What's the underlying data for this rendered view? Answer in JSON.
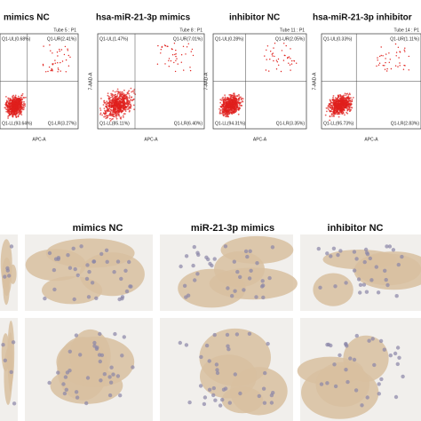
{
  "flow_panels": [
    {
      "title": "mimics NC",
      "tube": "Tube 5 : P1",
      "ul": "Q1-UL(0.68%)",
      "ur": "Q1-UR(2.41%)",
      "ll": "Q1-LL(93.64%)",
      "lr": "Q1-LR(3.27%)"
    },
    {
      "title": "hsa-miR-21-3p  mimics",
      "tube": "Tube 8 : P1",
      "ul": "Q1-UL(1.47%)",
      "ur": "Q1-UR(7.01%)",
      "ll": "Q1-LL(85.11%)",
      "lr": "Q1-LR(6.40%)"
    },
    {
      "title": "inhibitor NC",
      "tube": "Tube 11 : P1",
      "ul": "Q1-UL(0.28%)",
      "ur": "Q1-UR(2.05%)",
      "ll": "Q1-LL(94.31%)",
      "lr": "Q1-LR(3.35%)"
    },
    {
      "title": "hsa-miR-21-3p  inhibitor",
      "tube": "Tube 14 : P1",
      "ul": "Q1-UL(0.33%)",
      "ur": "Q1-UR(1.11%)",
      "ll": "Q1-LL(95.73%)",
      "lr": "Q1-LR(2.83%)"
    }
  ],
  "x_label": "APC-A",
  "y_label": "7-AAD-A",
  "ihc_headers": [
    "mimics NC",
    "miR-21-3p  mimics",
    "inhibitor NC"
  ]
}
